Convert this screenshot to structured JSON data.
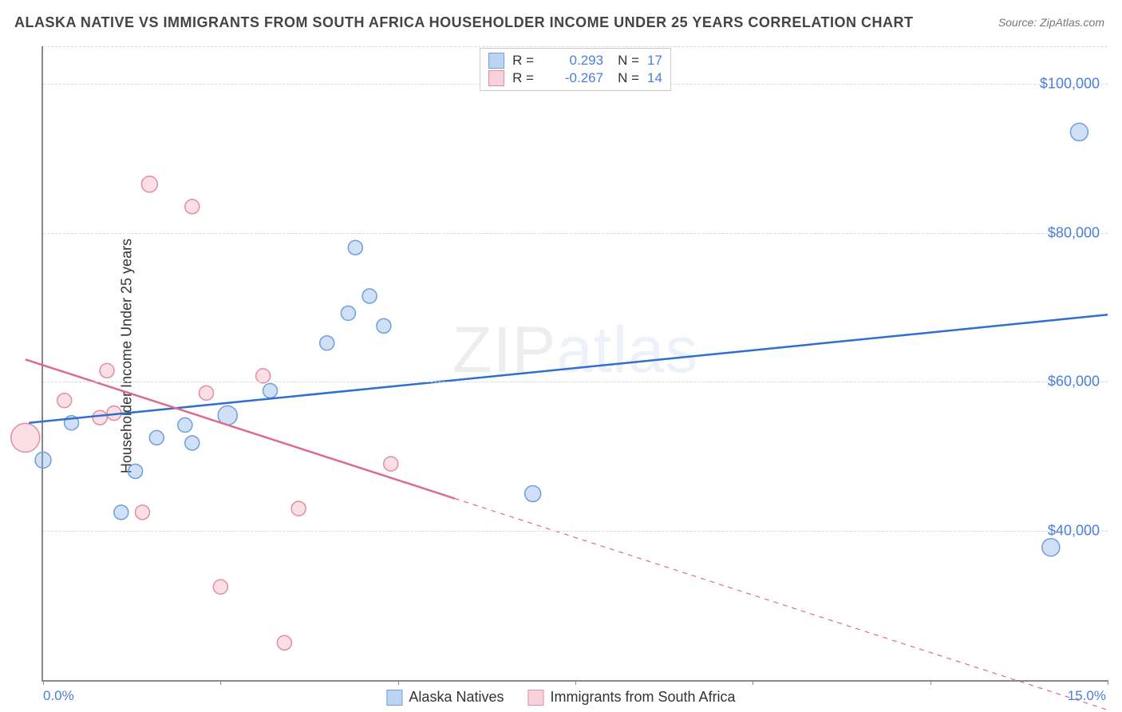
{
  "title": "ALASKA NATIVE VS IMMIGRANTS FROM SOUTH AFRICA HOUSEHOLDER INCOME UNDER 25 YEARS CORRELATION CHART",
  "source_label": "Source: ZipAtlas.com",
  "ylabel": "Householder Income Under 25 years",
  "watermark_a": "ZIP",
  "watermark_b": "atlas",
  "chart": {
    "type": "scatter",
    "background_color": "#ffffff",
    "grid_color": "#d8d8d8",
    "axis_color": "#888888",
    "xlim": [
      0.0,
      15.0
    ],
    "ylim": [
      20000,
      105000
    ],
    "ytick_values": [
      40000,
      60000,
      80000,
      100000
    ],
    "ytick_labels": [
      "$40,000",
      "$60,000",
      "$80,000",
      "$100,000"
    ],
    "xtick_values": [
      0.0,
      2.5,
      5.0,
      7.5,
      10.0,
      12.5,
      15.0
    ],
    "xaxis_end_labels": {
      "left": "0.0%",
      "right": "15.0%"
    },
    "tick_label_color": "#4a7fd8",
    "tick_label_fontsize": 18,
    "series": [
      {
        "name": "Alaska Natives",
        "color_fill": "rgba(120,165,230,0.35)",
        "color_stroke": "#6f9ed9",
        "r_stat": "0.293",
        "n_stat": "17",
        "marker_radius": 9,
        "points": [
          {
            "x": 0.0,
            "y": 49500,
            "r": 10
          },
          {
            "x": 0.4,
            "y": 54500,
            "r": 9
          },
          {
            "x": 1.1,
            "y": 42500,
            "r": 9
          },
          {
            "x": 1.3,
            "y": 48000,
            "r": 9
          },
          {
            "x": 1.6,
            "y": 52500,
            "r": 9
          },
          {
            "x": 2.0,
            "y": 54200,
            "r": 9
          },
          {
            "x": 2.1,
            "y": 51800,
            "r": 9
          },
          {
            "x": 2.6,
            "y": 55500,
            "r": 12
          },
          {
            "x": 3.2,
            "y": 58800,
            "r": 9
          },
          {
            "x": 4.0,
            "y": 65200,
            "r": 9
          },
          {
            "x": 4.4,
            "y": 78000,
            "r": 9
          },
          {
            "x": 4.3,
            "y": 69200,
            "r": 9
          },
          {
            "x": 4.6,
            "y": 71500,
            "r": 9
          },
          {
            "x": 4.8,
            "y": 67500,
            "r": 9
          },
          {
            "x": 6.9,
            "y": 45000,
            "r": 10
          },
          {
            "x": 14.2,
            "y": 37800,
            "r": 11
          },
          {
            "x": 14.6,
            "y": 93500,
            "r": 11
          }
        ],
        "trend": {
          "x1": -0.2,
          "y1": 54500,
          "x2": 15.0,
          "y2": 69000,
          "solid_until_x": 15.0,
          "width": 2.5,
          "color": "#2f6fd0"
        }
      },
      {
        "name": "Immigrants from South Africa",
        "color_fill": "rgba(240,150,170,0.30)",
        "color_stroke": "#e48ca3",
        "r_stat": "-0.267",
        "n_stat": "14",
        "marker_radius": 9,
        "points": [
          {
            "x": -0.25,
            "y": 52500,
            "r": 18
          },
          {
            "x": 0.3,
            "y": 57500,
            "r": 9
          },
          {
            "x": 0.8,
            "y": 55200,
            "r": 9
          },
          {
            "x": 0.9,
            "y": 61500,
            "r": 9
          },
          {
            "x": 1.0,
            "y": 55800,
            "r": 9
          },
          {
            "x": 1.4,
            "y": 42500,
            "r": 9
          },
          {
            "x": 1.5,
            "y": 86500,
            "r": 10
          },
          {
            "x": 2.1,
            "y": 83500,
            "r": 9
          },
          {
            "x": 2.3,
            "y": 58500,
            "r": 9
          },
          {
            "x": 2.5,
            "y": 32500,
            "r": 9
          },
          {
            "x": 3.1,
            "y": 60800,
            "r": 9
          },
          {
            "x": 3.4,
            "y": 25000,
            "r": 9
          },
          {
            "x": 3.6,
            "y": 43000,
            "r": 9
          },
          {
            "x": 4.9,
            "y": 49000,
            "r": 9
          }
        ],
        "trend": {
          "x1": -0.25,
          "y1": 63000,
          "x2": 15.0,
          "y2": 16000,
          "solid_until_x": 5.8,
          "width": 2.5,
          "color": "#e06a8a"
        }
      }
    ]
  },
  "legend": {
    "swatch_blue_fill": "#bcd4f2",
    "swatch_blue_border": "#6f9ed9",
    "swatch_pink_fill": "#f7d2db",
    "swatch_pink_border": "#e48ca3",
    "series1_label": "Alaska Natives",
    "series2_label": "Immigrants from South Africa"
  }
}
